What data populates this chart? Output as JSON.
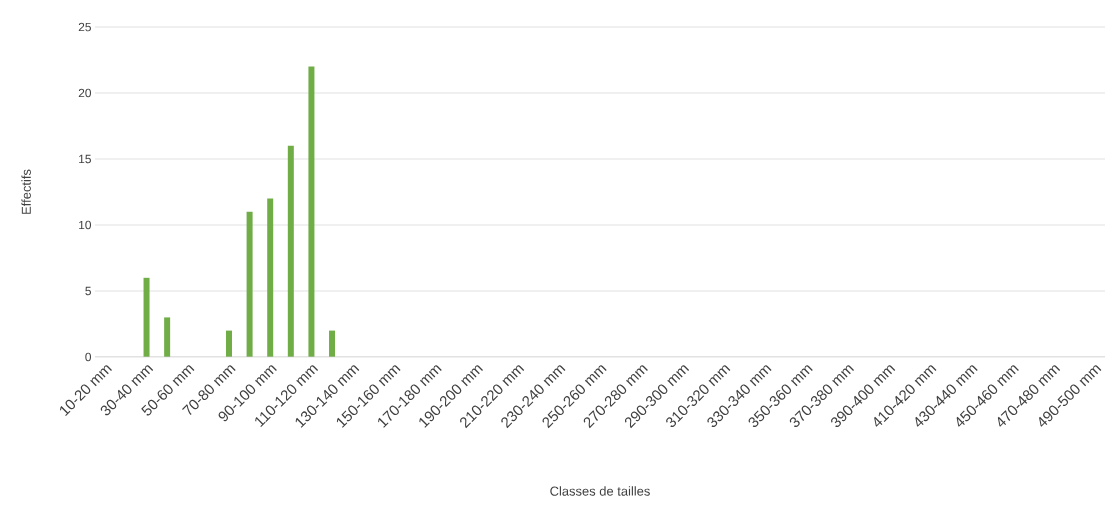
{
  "chart_data": {
    "type": "bar",
    "xlabel": "Classes de tailles",
    "ylabel": "Effectifs",
    "categories": [
      "10-20 mm",
      null,
      "30-40 mm",
      null,
      "50-60 mm",
      null,
      "70-80 mm",
      null,
      "90-100 mm",
      null,
      "110-120 mm",
      null,
      "130-140 mm",
      null,
      "150-160 mm",
      null,
      "170-180 mm",
      null,
      "190-200 mm",
      null,
      "210-220 mm",
      null,
      "230-240 mm",
      null,
      "250-260 mm",
      null,
      "270-280 mm",
      null,
      "290-300 mm",
      null,
      "310-320 mm",
      null,
      "330-340 mm",
      null,
      "350-360 mm",
      null,
      "370-380 mm",
      null,
      "390-400 mm",
      null,
      "410-420 mm",
      null,
      "430-440 mm",
      null,
      "450-460 mm",
      null,
      "470-480 mm",
      null,
      "490-500 mm"
    ],
    "values": [
      0,
      0,
      6,
      3,
      0,
      0,
      2,
      11,
      12,
      16,
      22,
      2,
      0,
      0,
      0,
      0,
      0,
      0,
      0,
      0,
      0,
      0,
      0,
      0,
      0,
      0,
      0,
      0,
      0,
      0,
      0,
      0,
      0,
      0,
      0,
      0,
      0,
      0,
      0,
      0,
      0,
      0,
      0,
      0,
      0,
      0,
      0,
      0,
      0
    ],
    "color": "#70ad47",
    "ylim": [
      0,
      25
    ],
    "yticks": [
      0,
      5,
      10,
      15,
      20,
      25
    ],
    "grid": "y"
  }
}
